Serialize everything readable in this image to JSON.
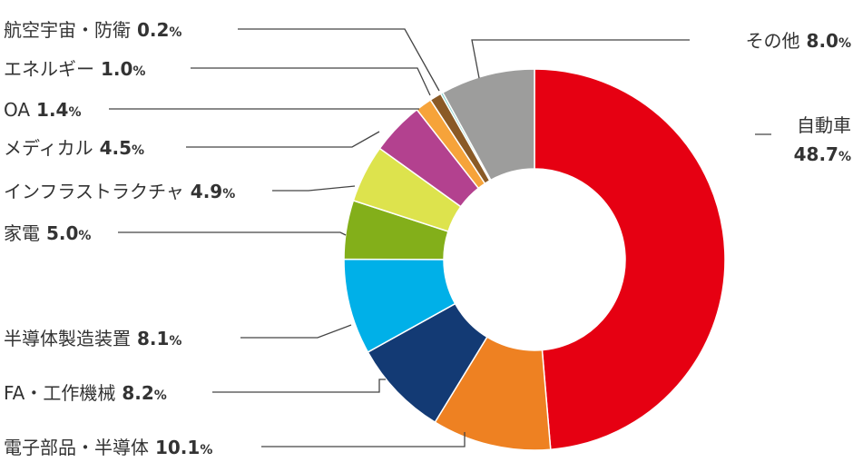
{
  "chart_data": {
    "type": "pie",
    "title": "",
    "donut": true,
    "segments": [
      {
        "name": "自動車",
        "value": 48.7,
        "value_text": "48.7",
        "unit": "%",
        "color": "#e60012"
      },
      {
        "name": "電子部品・半導体",
        "value": 10.1,
        "value_text": "10.1",
        "unit": "%",
        "color": "#ee8122"
      },
      {
        "name": "FA・工作機械",
        "value": 8.2,
        "value_text": "8.2",
        "unit": "%",
        "color": "#133a74"
      },
      {
        "name": "半導体製造装置",
        "value": 8.1,
        "value_text": "8.1",
        "unit": "%",
        "color": "#00b0e8"
      },
      {
        "name": "家電",
        "value": 5.0,
        "value_text": "5.0",
        "unit": "%",
        "color": "#83af1a"
      },
      {
        "name": "インフラストラクチャ",
        "value": 4.9,
        "value_text": "4.9",
        "unit": "%",
        "color": "#dde34d"
      },
      {
        "name": "メディカル",
        "value": 4.5,
        "value_text": "4.5",
        "unit": "%",
        "color": "#b3418f"
      },
      {
        "name": "OA",
        "value": 1.4,
        "value_text": "1.4",
        "unit": "%",
        "color": "#f6a33a"
      },
      {
        "name": "エネルギー",
        "value": 1.0,
        "value_text": "1.0",
        "unit": "%",
        "color": "#8a5a26"
      },
      {
        "name": "航空宇宙・防衛",
        "value": 0.2,
        "value_text": "0.2",
        "unit": "%",
        "color": "#7fcfc9"
      },
      {
        "name": "その他",
        "value": 8.0,
        "value_text": "8.0",
        "unit": "%",
        "color": "#9d9d9c"
      }
    ]
  }
}
